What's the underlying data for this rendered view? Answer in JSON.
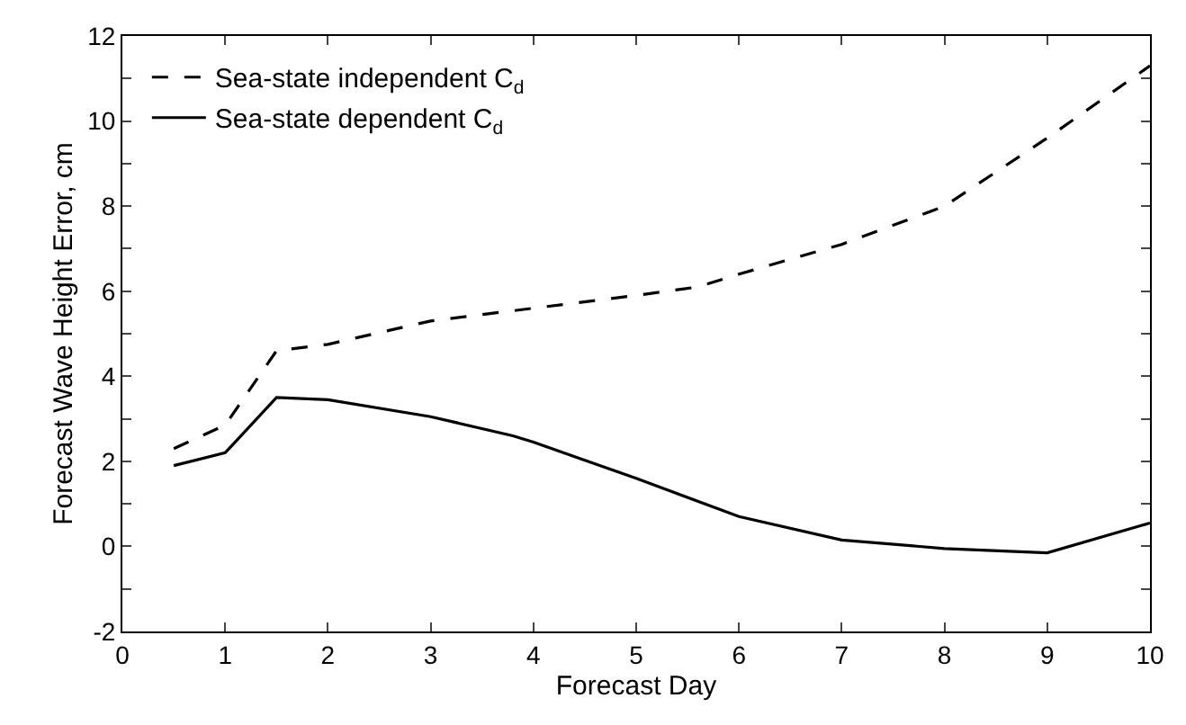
{
  "chart_data": {
    "type": "line",
    "xlabel": "Forecast Day",
    "ylabel": "Forecast Wave Height Error, cm",
    "xlim": [
      0,
      10
    ],
    "xticks": [
      0,
      1,
      2,
      3,
      4,
      5,
      6,
      7,
      8,
      9,
      10
    ],
    "ylim": [
      -2,
      12
    ],
    "yticks": [
      -2,
      {
        "value": -1,
        "label": null
      },
      0,
      {
        "value": 1,
        "label": null
      },
      2,
      {
        "value": 3,
        "label": null
      },
      4,
      {
        "value": 5,
        "label": null
      },
      6,
      {
        "value": 7,
        "label": null
      },
      8,
      {
        "value": 9,
        "label": null
      },
      10,
      {
        "value": 11,
        "label": null
      },
      12
    ],
    "legend": "top left",
    "marker": "none",
    "series": [
      {
        "name": "Sea-state independent C$_{d}$",
        "color": "#000000",
        "line_style": "dashed",
        "x": [
          0.5,
          1,
          1.5,
          2,
          3,
          4,
          5,
          5.6,
          6,
          7,
          8,
          9,
          10
        ],
        "values": [
          2.3,
          2.85,
          4.6,
          4.75,
          5.3,
          5.6,
          5.9,
          6.1,
          6.4,
          7.1,
          8.0,
          9.6,
          11.3
        ]
      },
      {
        "name": "Sea-state dependent C$_{d}$",
        "color": "#000000",
        "line_style": "solid",
        "x": [
          0.5,
          1,
          1.5,
          2,
          3,
          3.8,
          4,
          5,
          6,
          7,
          8,
          9,
          10
        ],
        "values": [
          1.9,
          2.2,
          3.5,
          3.45,
          3.05,
          2.6,
          2.45,
          1.6,
          0.7,
          0.15,
          -0.05,
          -0.15,
          0.55
        ]
      }
    ]
  }
}
